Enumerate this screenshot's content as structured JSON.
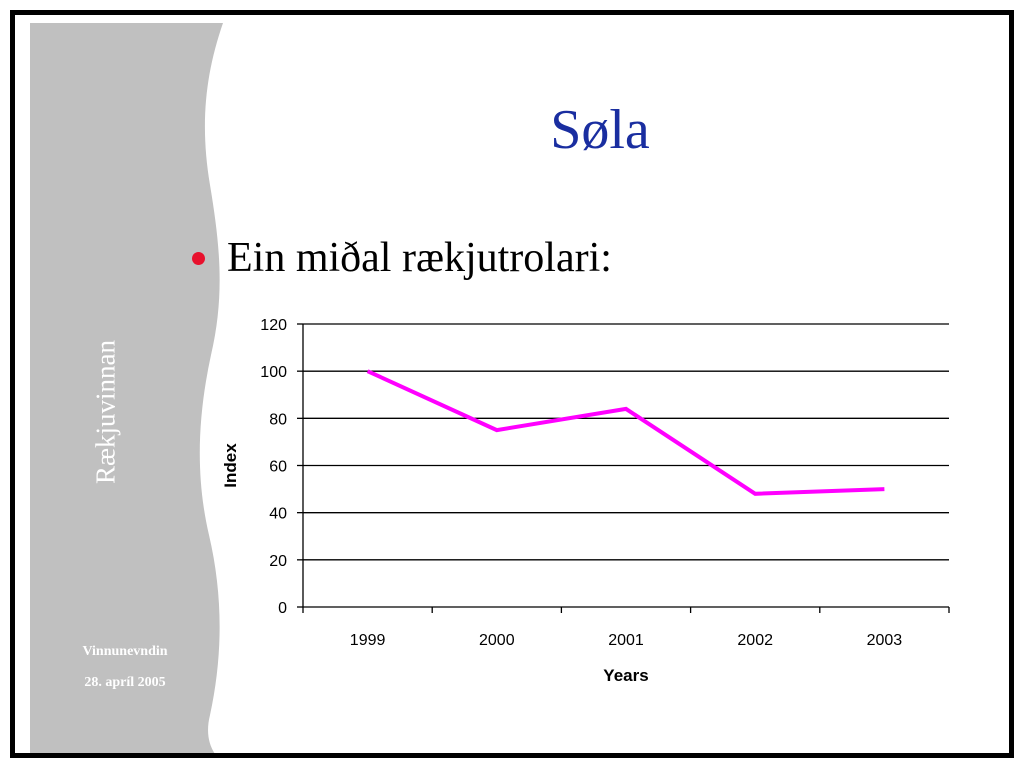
{
  "slide": {
    "title": "Søla",
    "bullet": "Ein miðal rækjutrolari:",
    "sidebar_title": "Rækjuvinnan",
    "sidebar_org": "Vinnunevndin",
    "sidebar_date": "28. apríl 2005"
  },
  "colors": {
    "sidebar": "#c0c0c0",
    "title": "#1a2ea0",
    "bullet": "#e8112d",
    "series": "#ff00ff"
  },
  "chart_data": {
    "type": "line",
    "categories": [
      "1999",
      "2000",
      "2001",
      "2002",
      "2003"
    ],
    "values": [
      100,
      75,
      84,
      48,
      50
    ],
    "xlabel": "Years",
    "ylabel": "Index",
    "ylim": [
      0,
      120
    ],
    "yticks": [
      0,
      20,
      40,
      60,
      80,
      100,
      120
    ],
    "grid": true
  }
}
